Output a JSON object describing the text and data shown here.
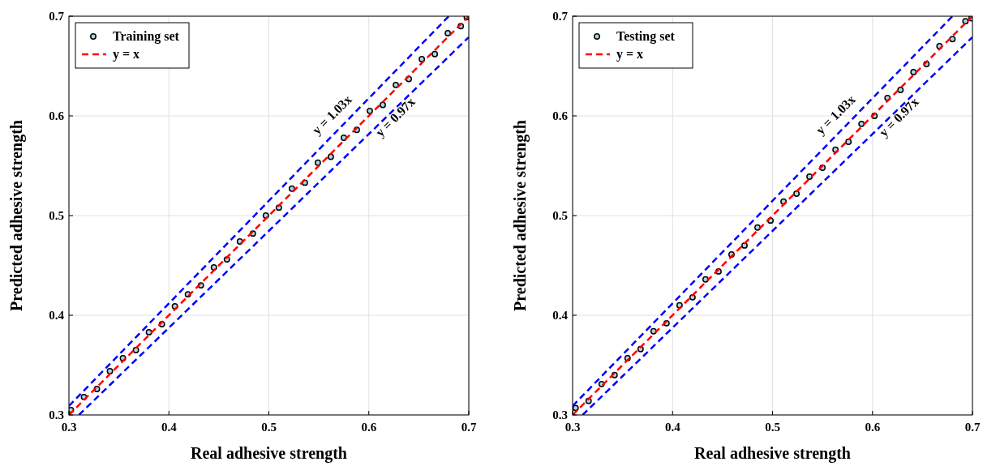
{
  "chart_data": [
    {
      "type": "scatter",
      "xlabel": "Real adhesive strength",
      "ylabel": "Predicted adhesive strength",
      "xlim": [
        0.3,
        0.7
      ],
      "ylim": [
        0.3,
        0.7
      ],
      "xticks": [
        0.3,
        0.4,
        0.5,
        0.6,
        0.7
      ],
      "yticks": [
        0.3,
        0.4,
        0.5,
        0.6,
        0.7
      ],
      "grid": true,
      "legend": "top left",
      "annotations": [
        "y = 1.03x",
        "y = 0.97x"
      ],
      "series": [
        {
          "name": "Training set",
          "marker": "circle",
          "color": "#a8d8e8",
          "x": [
            0.302,
            0.315,
            0.328,
            0.341,
            0.354,
            0.367,
            0.38,
            0.393,
            0.406,
            0.419,
            0.432,
            0.445,
            0.458,
            0.471,
            0.484,
            0.497,
            0.51,
            0.523,
            0.536,
            0.549,
            0.562,
            0.575,
            0.588,
            0.601,
            0.614,
            0.627,
            0.64,
            0.653,
            0.666,
            0.679,
            0.692,
            0.698
          ],
          "values": [
            0.305,
            0.318,
            0.326,
            0.344,
            0.357,
            0.365,
            0.383,
            0.391,
            0.409,
            0.421,
            0.43,
            0.448,
            0.456,
            0.474,
            0.482,
            0.5,
            0.508,
            0.527,
            0.533,
            0.553,
            0.559,
            0.578,
            0.586,
            0.605,
            0.611,
            0.631,
            0.637,
            0.657,
            0.662,
            0.683,
            0.69,
            0.699
          ]
        },
        {
          "name": "y = x",
          "type": "line",
          "color": "#ff0000",
          "line_style": "dashed",
          "x": [
            0.3,
            0.7
          ],
          "values": [
            0.3,
            0.7
          ]
        },
        {
          "type": "line",
          "color": "#0000ff",
          "line_style": "dashed",
          "x": [
            0.3,
            0.68
          ],
          "values": [
            0.309,
            0.7
          ]
        },
        {
          "type": "line",
          "color": "#0000ff",
          "line_style": "dashed",
          "x": [
            0.31,
            0.7
          ],
          "values": [
            0.3,
            0.679
          ]
        }
      ]
    },
    {
      "type": "scatter",
      "xlabel": "Real adhesive strength",
      "ylabel": "Predicted adhesive strength",
      "xlim": [
        0.3,
        0.7
      ],
      "ylim": [
        0.3,
        0.7
      ],
      "xticks": [
        0.3,
        0.4,
        0.5,
        0.6,
        0.7
      ],
      "yticks": [
        0.3,
        0.4,
        0.5,
        0.6,
        0.7
      ],
      "grid": true,
      "legend": "top left",
      "annotations": [
        "y = 1.03x",
        "y = 0.97x"
      ],
      "series": [
        {
          "name": "Testing set",
          "marker": "circle",
          "color": "#a8d8e8",
          "x": [
            0.303,
            0.316,
            0.329,
            0.342,
            0.355,
            0.368,
            0.381,
            0.394,
            0.407,
            0.42,
            0.433,
            0.446,
            0.459,
            0.472,
            0.485,
            0.498,
            0.511,
            0.524,
            0.537,
            0.55,
            0.563,
            0.576,
            0.589,
            0.602,
            0.615,
            0.628,
            0.641,
            0.654,
            0.667,
            0.68,
            0.693,
            0.699
          ],
          "values": [
            0.307,
            0.314,
            0.331,
            0.34,
            0.357,
            0.366,
            0.384,
            0.392,
            0.41,
            0.418,
            0.436,
            0.444,
            0.461,
            0.47,
            0.488,
            0.495,
            0.514,
            0.522,
            0.539,
            0.548,
            0.566,
            0.574,
            0.592,
            0.6,
            0.618,
            0.626,
            0.644,
            0.652,
            0.67,
            0.677,
            0.695,
            0.698
          ]
        },
        {
          "name": "y = x",
          "type": "line",
          "color": "#ff0000",
          "line_style": "dashed",
          "x": [
            0.3,
            0.7
          ],
          "values": [
            0.3,
            0.7
          ]
        },
        {
          "type": "line",
          "color": "#0000ff",
          "line_style": "dashed",
          "x": [
            0.3,
            0.68
          ],
          "values": [
            0.309,
            0.7
          ]
        },
        {
          "type": "line",
          "color": "#0000ff",
          "line_style": "dashed",
          "x": [
            0.31,
            0.7
          ],
          "values": [
            0.3,
            0.679
          ]
        }
      ]
    }
  ]
}
